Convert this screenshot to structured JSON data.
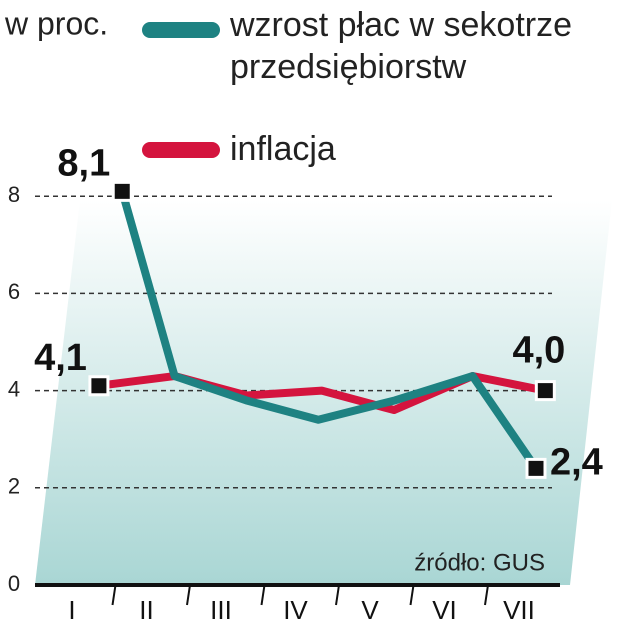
{
  "chart_data": {
    "type": "line",
    "y_label": "w proc.",
    "source": "źródło: GUS",
    "categories": [
      "I",
      "II",
      "III",
      "IV",
      "V",
      "VI",
      "VII"
    ],
    "series": [
      {
        "name": "wzrost płac w sekotrze przedsiębiorstw",
        "color": "#1e8282",
        "values": [
          8.1,
          4.3,
          3.8,
          3.4,
          3.8,
          4.3,
          2.4
        ],
        "value_labels": [
          "8,1",
          null,
          null,
          null,
          null,
          null,
          "2,4"
        ]
      },
      {
        "name": "inflacja",
        "color": "#d4143e",
        "values": [
          4.1,
          4.3,
          3.9,
          4.0,
          3.6,
          4.3,
          4.0
        ],
        "value_labels": [
          "4,1",
          null,
          null,
          null,
          null,
          null,
          "4,0"
        ]
      }
    ],
    "ylim": [
      0,
      8.2
    ],
    "yticks": [
      0,
      2,
      4,
      6,
      8
    ],
    "grid": true
  }
}
